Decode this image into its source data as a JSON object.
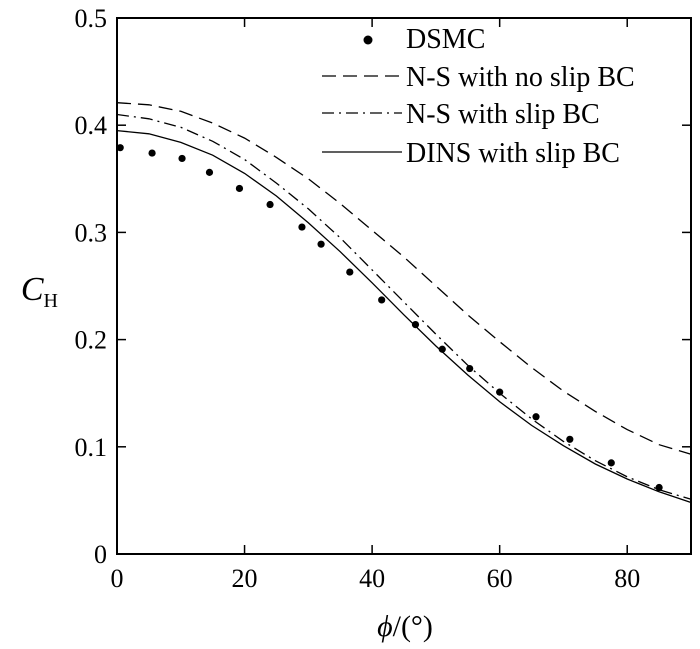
{
  "chart_data": {
    "type": "line",
    "xlabel_symbol": "ϕ",
    "xlabel_unit": "/(°)",
    "ylabel_symbol": "C",
    "ylabel_subscript": "H",
    "xlim": [
      0,
      90
    ],
    "ylim": [
      0,
      0.5
    ],
    "xticks": [
      0,
      20,
      40,
      60,
      80
    ],
    "xtick_labels": [
      "0",
      "20",
      "40",
      "60",
      "80"
    ],
    "yticks": [
      0,
      0.1,
      0.2,
      0.3,
      0.4,
      0.5
    ],
    "ytick_labels": [
      "0",
      "0.1",
      "0.2",
      "0.3",
      "0.4",
      "0.5"
    ],
    "grid": false,
    "legend_position": "top-right",
    "series": [
      {
        "name": "DSMC",
        "style": "markers",
        "x": [
          0.5,
          5.5,
          10.2,
          14.5,
          19.2,
          24,
          29,
          32,
          36.5,
          41.5,
          46.8,
          51,
          55.3,
          60,
          65.7,
          71,
          77.5,
          85
        ],
        "y": [
          0.379,
          0.374,
          0.369,
          0.356,
          0.341,
          0.326,
          0.305,
          0.289,
          0.263,
          0.237,
          0.214,
          0.191,
          0.173,
          0.151,
          0.128,
          0.107,
          0.085,
          0.062
        ]
      },
      {
        "name": "N-S with no slip BC",
        "style": "dashed",
        "x": [
          0,
          5,
          10,
          15,
          20,
          25,
          30,
          35,
          40,
          45,
          50,
          55,
          60,
          65,
          70,
          75,
          80,
          85,
          90
        ],
        "y": [
          0.421,
          0.419,
          0.413,
          0.402,
          0.388,
          0.37,
          0.35,
          0.327,
          0.302,
          0.277,
          0.25,
          0.223,
          0.198,
          0.174,
          0.152,
          0.133,
          0.116,
          0.102,
          0.093
        ]
      },
      {
        "name": "N-S with slip BC",
        "style": "dashdot",
        "x": [
          0,
          5,
          10,
          15,
          20,
          25,
          30,
          35,
          40,
          45,
          50,
          55,
          60,
          65,
          70,
          75,
          80,
          85,
          90
        ],
        "y": [
          0.41,
          0.406,
          0.398,
          0.385,
          0.368,
          0.346,
          0.322,
          0.295,
          0.265,
          0.235,
          0.205,
          0.176,
          0.15,
          0.126,
          0.105,
          0.087,
          0.072,
          0.06,
          0.051
        ]
      },
      {
        "name": "DINS with slip BC",
        "style": "solid",
        "x": [
          0,
          5,
          10,
          15,
          20,
          25,
          30,
          35,
          40,
          45,
          50,
          55,
          60,
          65,
          70,
          75,
          80,
          85,
          90
        ],
        "y": [
          0.395,
          0.392,
          0.384,
          0.372,
          0.355,
          0.334,
          0.309,
          0.282,
          0.253,
          0.223,
          0.194,
          0.167,
          0.142,
          0.12,
          0.101,
          0.084,
          0.07,
          0.058,
          0.048
        ]
      }
    ]
  }
}
